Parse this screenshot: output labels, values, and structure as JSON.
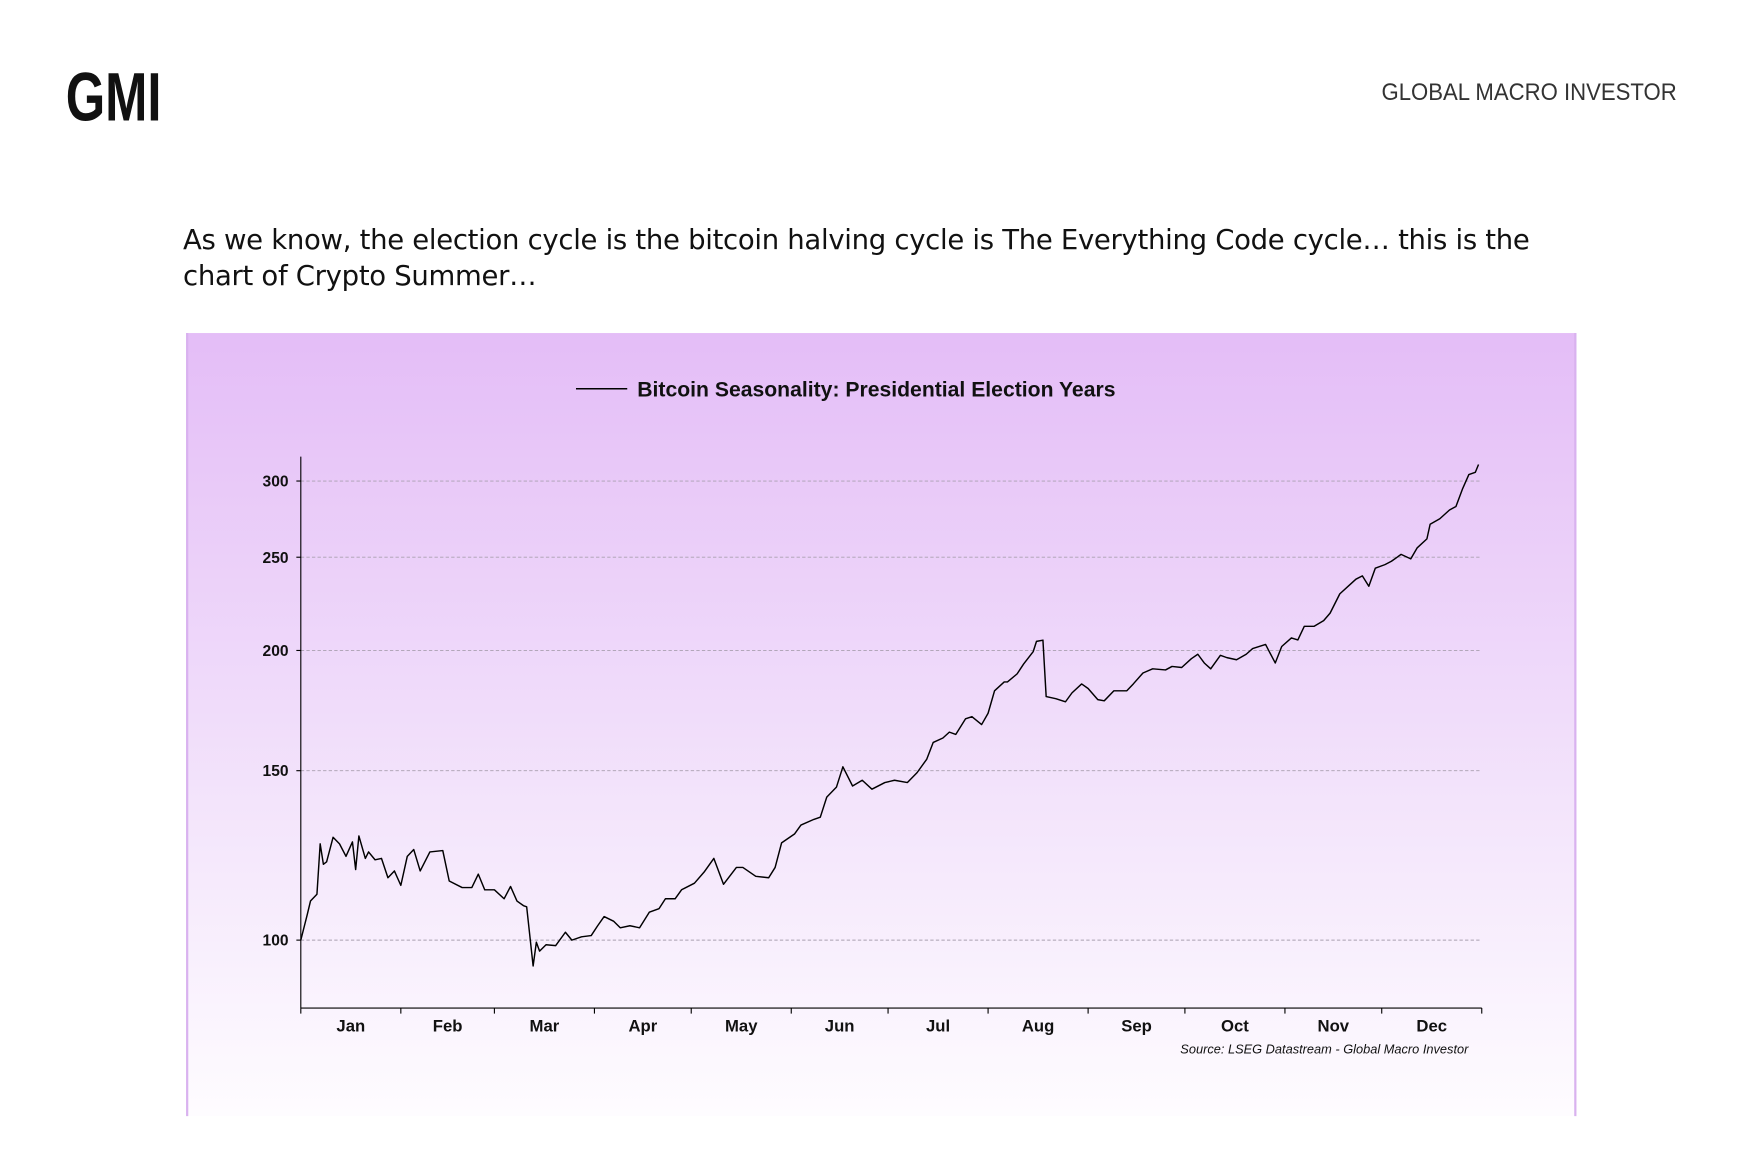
{
  "header": {
    "logo": "GMI",
    "brand": "GLOBAL MACRO INVESTOR"
  },
  "intro": "As we know, the election cycle is the bitcoin halving cycle is The Everything Code cycle… this is the chart of Crypto Summer…",
  "chart_data": {
    "type": "line",
    "source": "Source: LSEG Datastream - Global Macro Investor",
    "log_scale": true,
    "grid": true,
    "x": [
      0,
      2,
      3,
      5,
      6,
      7,
      8,
      10,
      12,
      14,
      16,
      17,
      18,
      20,
      21,
      23,
      25,
      27,
      29,
      31,
      33,
      35,
      37,
      40,
      44,
      46,
      50,
      53,
      55,
      57,
      60,
      63,
      65,
      67,
      69,
      70,
      72,
      73,
      74,
      76,
      79,
      82,
      84,
      87,
      90,
      92,
      94,
      97,
      99,
      102,
      105,
      108,
      111,
      113,
      116,
      118,
      122,
      125,
      128,
      131,
      135,
      137,
      141,
      145,
      147,
      149,
      153,
      155,
      159,
      161,
      163,
      166,
      168,
      171,
      174,
      177,
      181,
      184,
      188,
      191,
      194,
      196,
      199,
      201,
      203,
      206,
      208,
      211,
      213,
      215,
      218,
      219,
      222,
      224,
      227,
      228,
      230,
      231,
      234,
      237,
      239,
      242,
      244,
      247,
      249,
      252,
      256,
      258,
      261,
      264,
      268,
      270,
      273,
      276,
      278,
      280,
      282,
      285,
      287,
      290,
      293,
      295,
      299,
      300,
      302,
      304,
      307,
      309,
      311,
      314,
      317,
      319,
      322,
      325,
      327,
      329,
      331,
      333,
      336,
      338,
      341,
      344,
      346,
      349,
      350,
      353,
      356,
      358,
      360,
      362,
      364,
      365
    ],
    "series": [
      {
        "name": "Bitcoin Seasonality: Presidential Election Years",
        "color": "#000000",
        "values": [
          100,
          106.3,
          109.8,
          111.6,
          125.9,
          119.9,
          120.6,
          127.9,
          125.9,
          122.2,
          126.5,
          118.4,
          128.3,
          121.6,
          123.5,
          121.2,
          121.6,
          116.1,
          118.0,
          114.0,
          122.2,
          124.2,
          118.0,
          123.5,
          123.9,
          115.2,
          113.4,
          113.4,
          117.1,
          112.8,
          112.8,
          110.4,
          113.7,
          109.8,
          108.6,
          108.3,
          94.0,
          99.5,
          97.4,
          98.9,
          98.7,
          101.9,
          100,
          100.8,
          101.1,
          103.5,
          105.8,
          104.6,
          103.0,
          103.5,
          103.0,
          106.9,
          107.8,
          110.4,
          110.4,
          112.8,
          114.6,
          117.7,
          121.6,
          114.3,
          119.0,
          119.0,
          116.5,
          116.1,
          119.0,
          126.2,
          128.9,
          131.7,
          133.5,
          134.2,
          140.8,
          144.2,
          151.4,
          144.6,
          146.6,
          143.5,
          145.8,
          146.6,
          145.8,
          149.3,
          154.2,
          160.5,
          162.2,
          164.5,
          163.6,
          169.8,
          170.7,
          167.5,
          172.1,
          181.6,
          185.5,
          185.5,
          189.1,
          193.6,
          199.5,
          204.4,
          205.0,
          179.1,
          178.2,
          176.9,
          180.7,
          184.6,
          182.6,
          177.8,
          177.3,
          181.6,
          181.6,
          184.6,
          189.5,
          191.4,
          190.9,
          192.5,
          192.0,
          196.1,
          198.2,
          194.1,
          191.4,
          197.7,
          196.6,
          195.6,
          198.2,
          200.9,
          202.9,
          199.9,
          194.1,
          201.9,
          206.1,
          205.1,
          211.9,
          211.9,
          214.8,
          218.7,
          229.0,
          233.9,
          237.2,
          239.1,
          233.2,
          243.5,
          245.6,
          247.6,
          251.7,
          249.0,
          255.7,
          261.2,
          270.5,
          274.1,
          279.9,
          282.3,
          294.2,
          304.7,
          306.3,
          312.1
        ]
      }
    ],
    "xlim": [
      0,
      366
    ],
    "xticks": [
      0,
      31,
      60,
      91,
      121,
      152,
      182,
      213,
      244,
      274,
      305,
      335,
      366
    ],
    "months": [
      "Jan",
      "Feb",
      "Mar",
      "Apr",
      "May",
      "Jun",
      "Jul",
      "Aug",
      "Sep",
      "Oct",
      "Nov",
      "Dec"
    ],
    "ylim": [
      85,
      318
    ],
    "yticks": [
      100,
      150,
      200,
      250,
      300
    ]
  }
}
